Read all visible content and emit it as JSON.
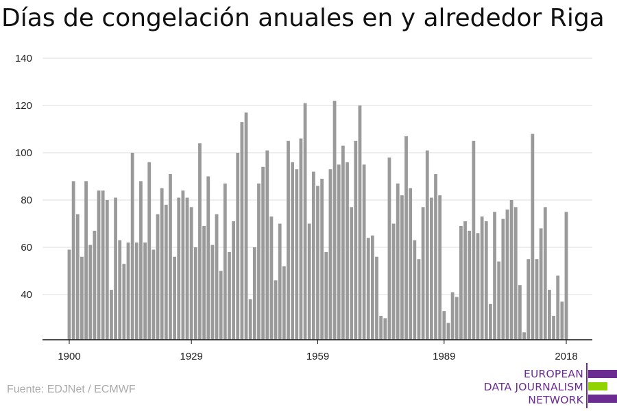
{
  "title": "Días de congelación anuales en y alrededor Riga",
  "source": "Fuente: EDJNet / ECMWF",
  "logo": {
    "lines": [
      "EUROPEAN",
      "DATA JOURNALISM",
      "NETWORK"
    ],
    "colors": {
      "purple": "#6b2c91",
      "green": "#8fd400"
    }
  },
  "colors": {
    "bar": "#9a9a9a",
    "grid": "#dcdcdc",
    "axis": "#111111"
  },
  "chart_data": {
    "type": "bar",
    "title": "Días de congelación anuales en y alrededor Riga",
    "xlabel": "",
    "ylabel": "",
    "ylim": [
      20,
      140
    ],
    "y_ticks": [
      40,
      60,
      80,
      100,
      120,
      140
    ],
    "x_ticks": [
      1900,
      1929,
      1959,
      1989,
      2018
    ],
    "grid": true,
    "x_start": 1900,
    "x_end": 2018,
    "values": [
      59,
      88,
      74,
      56,
      88,
      61,
      67,
      84,
      84,
      80,
      42,
      81,
      63,
      53,
      62,
      100,
      62,
      88,
      62,
      96,
      59,
      74,
      85,
      78,
      91,
      56,
      81,
      84,
      81,
      77,
      60,
      104,
      69,
      90,
      61,
      74,
      50,
      87,
      58,
      71,
      100,
      113,
      117,
      38,
      60,
      87,
      94,
      101,
      73,
      46,
      70,
      52,
      105,
      96,
      93,
      106,
      121,
      70,
      92,
      86,
      89,
      58,
      93,
      122,
      95,
      103,
      96,
      77,
      105,
      120,
      95,
      64,
      65,
      56,
      31,
      30,
      98,
      70,
      87,
      82,
      107,
      85,
      63,
      55,
      77,
      101,
      81,
      91,
      82,
      33,
      28,
      41,
      39,
      69,
      71,
      67,
      105,
      66,
      73,
      71,
      36,
      75,
      54,
      72,
      76,
      80,
      77,
      44,
      24,
      55,
      108,
      55,
      68,
      77,
      42,
      31,
      48,
      37,
      75
    ]
  }
}
